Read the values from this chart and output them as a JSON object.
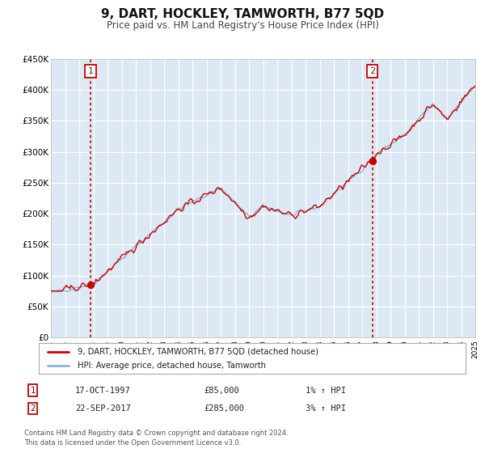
{
  "title": "9, DART, HOCKLEY, TAMWORTH, B77 5QD",
  "subtitle": "Price paid vs. HM Land Registry's House Price Index (HPI)",
  "title_fontsize": 11,
  "subtitle_fontsize": 8.5,
  "background_color": "#ffffff",
  "plot_bg_color": "#dce9f5",
  "grid_color": "#ffffff",
  "hpi_line_color": "#8ab4d4",
  "price_line_color": "#cc0000",
  "marker_color": "#cc0000",
  "vline_color": "#cc0000",
  "marker1_year": 1997.8,
  "marker1_y": 85000,
  "marker2_year": 2017.73,
  "marker2_y": 285000,
  "xmin": 1995,
  "xmax": 2025,
  "ymin": 0,
  "ymax": 450000,
  "yticks": [
    0,
    50000,
    100000,
    150000,
    200000,
    250000,
    300000,
    350000,
    400000,
    450000
  ],
  "ytick_labels": [
    "£0",
    "£50K",
    "£100K",
    "£150K",
    "£200K",
    "£250K",
    "£300K",
    "£350K",
    "£400K",
    "£450K"
  ],
  "legend_label1": "9, DART, HOCKLEY, TAMWORTH, B77 5QD (detached house)",
  "legend_label2": "HPI: Average price, detached house, Tamworth",
  "annotation1_label": "1",
  "annotation1_date": "17-OCT-1997",
  "annotation1_price": "£85,000",
  "annotation1_hpi": "1% ↑ HPI",
  "annotation2_label": "2",
  "annotation2_date": "22-SEP-2017",
  "annotation2_price": "£285,000",
  "annotation2_hpi": "3% ↑ HPI",
  "footnote_line1": "Contains HM Land Registry data © Crown copyright and database right 2024.",
  "footnote_line2": "This data is licensed under the Open Government Licence v3.0."
}
